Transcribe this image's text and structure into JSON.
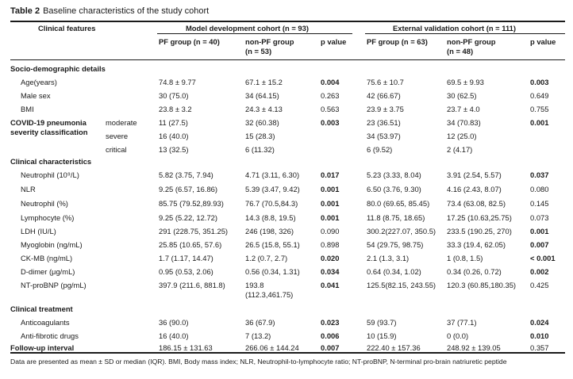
{
  "table": {
    "label": "Table 2",
    "caption": "Baseline characteristics of the study cohort",
    "headers": {
      "clinical_features": "Clinical features",
      "group1": "Model development cohort (n = 93)",
      "group2": "External validation cohort (n = 111)",
      "pf1": "PF group (n = 40)",
      "nonpf1_line1": "non-PF group",
      "nonpf1_line2": "(n = 53)",
      "p1": "p value",
      "pf2": "PF group (n = 63)",
      "nonpf2_line1": "non-PF group",
      "nonpf2_line2": "(n = 48)",
      "p2": "p value"
    },
    "sections": {
      "socio": "Socio-demographic details",
      "clinical_char": "Clinical characteristics",
      "clinical_treat": "Clinical treatment"
    },
    "rows": {
      "age": {
        "label": "Age(years)",
        "pf1": "74.8 ± 9.77",
        "npf1": "67.1 ± 15.2",
        "p1": "0.004",
        "pf2": "75.6 ± 10.7",
        "npf2": "69.5 ± 9.93",
        "p2": "0.003"
      },
      "male": {
        "label": "Male sex",
        "pf1": "30 (75.0)",
        "npf1": "34 (64.15)",
        "p1": "0.263",
        "pf2": "42 (66.67)",
        "npf2": "30 (62.5)",
        "p2": "0.649"
      },
      "bmi": {
        "label": "BMI",
        "pf1": "23.8 ± 3.2",
        "npf1": "24.3 ± 4.13",
        "p1": "0.563",
        "pf2": "23.9 ± 3.75",
        "npf2": "23.7 ± 4.0",
        "p2": "0.755"
      },
      "covid_moderate": {
        "label_line1": "COVID-19 pneumonia",
        "label_line2": "severity classification",
        "sub": "moderate",
        "pf1": "11 (27.5)",
        "npf1": "32 (60.38)",
        "p1": "0.003",
        "pf2": "23 (36.51)",
        "npf2": "34 (70.83)",
        "p2": "0.001"
      },
      "covid_severe": {
        "sub": "severe",
        "pf1": "16 (40.0)",
        "npf1": "15 (28.3)",
        "pf2": "34 (53.97)",
        "npf2": "12 (25.0)"
      },
      "covid_critical": {
        "sub": "critical",
        "pf1": "13 (32.5)",
        "npf1": "6 (11.32)",
        "pf2": "6 (9.52)",
        "npf2": "2 (4.17)"
      },
      "neut_abs": {
        "label": "Neutrophil (10⁹/L)",
        "pf1": "5.82 (3.75, 7.94)",
        "npf1": "4.71 (3.11, 6.30)",
        "p1": "0.017",
        "pf2": "5.23 (3.33, 8.04)",
        "npf2": "3.91 (2.54, 5.57)",
        "p2": "0.037"
      },
      "nlr": {
        "label": "NLR",
        "pf1": "9.25 (6.57, 16.86)",
        "npf1": "5.39 (3.47, 9.42)",
        "p1": "0.001",
        "pf2": "6.50 (3.76, 9.30)",
        "npf2": "4.16 (2.43, 8.07)",
        "p2": "0.080"
      },
      "neut_pct": {
        "label": "Neutrophil (%)",
        "pf1": "85.75 (79.52,89.93)",
        "npf1": "76.7 (70.5,84.3)",
        "p1": "0.001",
        "pf2": "80.0 (69.65, 85.45)",
        "npf2": "73.4 (63.08, 82.5)",
        "p2": "0.145"
      },
      "lymph": {
        "label": "Lymphocyte (%)",
        "pf1": "9.25 (5.22, 12.72)",
        "npf1": "14.3 (8.8, 19.5)",
        "p1": "0.001",
        "pf2": "11.8 (8.75, 18.65)",
        "npf2": "17.25 (10.63,25.75)",
        "p2": "0.073"
      },
      "ldh": {
        "label": "LDH (IU/L)",
        "pf1": "291 (228.75, 351.25)",
        "npf1": "246 (198, 326)",
        "p1": "0.090",
        "pf2": "300.2(227.07, 350.5)",
        "npf2": "233.5 (190.25, 270)",
        "p2": "0.001"
      },
      "myo": {
        "label": "Myoglobin (ng/mL)",
        "pf1": "25.85 (10.65, 57.6)",
        "npf1": "26.5 (15.8, 55.1)",
        "p1": "0.898",
        "pf2": "54 (29.75, 98.75)",
        "npf2": "33.3 (19.4, 62.05)",
        "p2": "0.007"
      },
      "ckmb": {
        "label": "CK-MB (ng/mL)",
        "pf1": "1.7 (1.17, 14.47)",
        "npf1": "1.2 (0.7, 2.7)",
        "p1": "0.020",
        "pf2": "2.1 (1.3, 3.1)",
        "npf2": "1 (0.8, 1.5)",
        "p2": "< 0.001"
      },
      "ddimer": {
        "label": "D-dimer (μg/mL)",
        "pf1": "0.95 (0.53, 2.06)",
        "npf1": "0.56 (0.34, 1.31)",
        "p1": "0.034",
        "pf2": "0.64 (0.34, 1.02)",
        "npf2": "0.34 (0.26, 0.72)",
        "p2": "0.002"
      },
      "ntpro": {
        "label": "NT-proBNP (pg/mL)",
        "pf1": "397.9 (211.6, 881.8)",
        "npf1_line1": "193.8",
        "npf1_line2": "(112.3,461.75)",
        "p1": "0.041",
        "pf2": "125.5(82.15, 243.55)",
        "npf2": "120.3 (60.85,180.35)",
        "p2": "0.425"
      },
      "anticoag": {
        "label": "Anticoagulants",
        "pf1": "36 (90.0)",
        "npf1": "36 (67.9)",
        "p1": "0.023",
        "pf2": "59 (93.7)",
        "npf2": "37 (77.1)",
        "p2": "0.024"
      },
      "antifib": {
        "label": "Anti-fibrotic drugs",
        "pf1": "16 (40.0)",
        "npf1": "7 (13.2)",
        "p1": "0.006",
        "pf2": "10 (15.9)",
        "npf2": "0 (0.0)",
        "p2": "0.010"
      },
      "followup": {
        "label": "Follow-up interval",
        "pf1": "186.15 ± 131.63",
        "npf1": "266.06 ± 144.24",
        "p1": "0.007",
        "pf2": "222.40 ± 157.36",
        "npf2": "248.92 ± 139.05",
        "p2": "0.357"
      }
    },
    "footnote": "Data are presented as mean ± SD or median (IQR). BMI, Body mass index; NLR, Neutrophil-to-lymphocyte ratio; NT-proBNP, N-terminal pro-brain natriuretic peptide"
  }
}
